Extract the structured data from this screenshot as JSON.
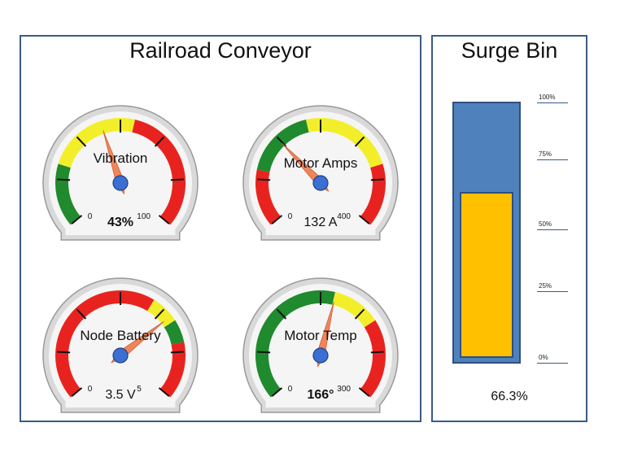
{
  "conveyor": {
    "title": "Railroad Conveyor",
    "gauges": [
      {
        "name": "Vibration",
        "min": "0",
        "max": "100",
        "value": 43,
        "range_max": 100,
        "display": "43%",
        "zones": [
          "green",
          "yellow",
          "red"
        ]
      },
      {
        "name": "Motor Amps",
        "min": "0",
        "max": "400",
        "value": 132,
        "range_max": 400,
        "display": "132 A",
        "zones": [
          "red",
          "green",
          "yellow",
          "red"
        ]
      },
      {
        "name": "Node Battery",
        "min": "0",
        "max": "5",
        "value": 3.5,
        "range_max": 5,
        "display": "3.5 V",
        "zones": [
          "red",
          "yellow",
          "green",
          "red"
        ]
      },
      {
        "name": "Motor Temp",
        "min": "0",
        "max": "300",
        "value": 166,
        "range_max": 300,
        "display": "166°",
        "zones": [
          "green",
          "yellow",
          "red"
        ]
      }
    ]
  },
  "surge_bin": {
    "title": "Surge Bin",
    "fill_percent": 66.3,
    "level_text": "66.3%",
    "scale": [
      "100%",
      "75%",
      "50%",
      "25%",
      "0%"
    ]
  },
  "colors": {
    "panel_border": "#3b5b86",
    "bin_blue": "#4f81bd",
    "bin_fill": "#ffc000",
    "zone_green": "#1f8a2e",
    "zone_yellow": "#f2ef2a",
    "zone_red": "#e8231f",
    "needle": "#f0855a",
    "hub": "#3b6fd1"
  }
}
